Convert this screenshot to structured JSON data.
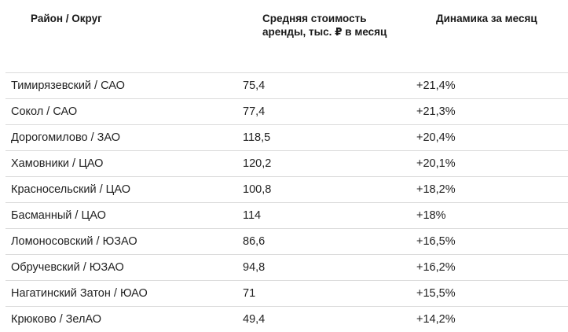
{
  "table": {
    "headers": [
      "Район / Округ",
      "Средняя стоимость аренды, тыс. ₽ в месяц",
      "Динамика за месяц"
    ],
    "rows": [
      {
        "district": "Тимирязевский / САО",
        "avg_rent": "75,4",
        "change": "+21,4%"
      },
      {
        "district": "Сокол / САО",
        "avg_rent": "77,4",
        "change": "+21,3%"
      },
      {
        "district": "Дорогомилово / ЗАО",
        "avg_rent": "118,5",
        "change": "+20,4%"
      },
      {
        "district": "Хамовники / ЦАО",
        "avg_rent": "120,2",
        "change": "+20,1%"
      },
      {
        "district": "Красносельский / ЦАО",
        "avg_rent": "100,8",
        "change": "+18,2%"
      },
      {
        "district": "Басманный / ЦАО",
        "avg_rent": "114",
        "change": "+18%"
      },
      {
        "district": "Ломоносовский / ЮЗАО",
        "avg_rent": "86,6",
        "change": "+16,5%"
      },
      {
        "district": "Обручевский / ЮЗАО",
        "avg_rent": "94,8",
        "change": "+16,2%"
      },
      {
        "district": "Нагатинский Затон / ЮАО",
        "avg_rent": "71",
        "change": "+15,5%"
      },
      {
        "district": "Крюково / ЗелАО",
        "avg_rent": "49,4",
        "change": "+14,2%"
      }
    ]
  }
}
